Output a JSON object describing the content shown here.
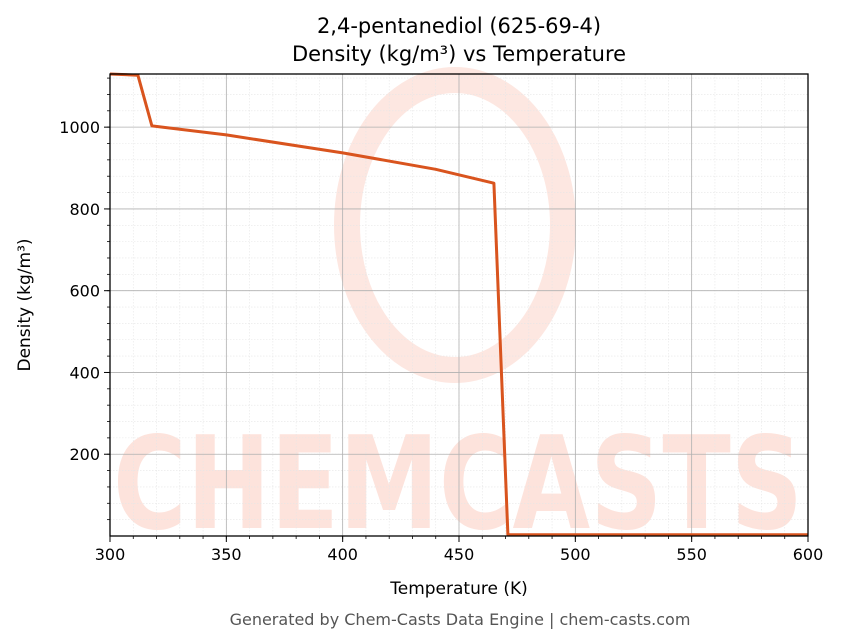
{
  "chart_data": {
    "type": "line",
    "title_line1": "2,4-pentanediol (625-69-4)",
    "title_line2": "Density (kg/m³) vs Temperature",
    "xlabel": "Temperature (K)",
    "ylabel": "Density (kg/m³)",
    "xlim": [
      300,
      600
    ],
    "ylim": [
      0,
      1130
    ],
    "x_ticks": [
      300,
      350,
      400,
      450,
      500,
      550,
      600
    ],
    "y_ticks": [
      200,
      400,
      600,
      800,
      1000
    ],
    "grid": true,
    "line_color": "#d9541e",
    "series": [
      {
        "x": [
          300,
          312,
          318,
          350,
          400,
          440,
          465,
          471,
          500,
          550,
          600
        ],
        "y": [
          1130,
          1127,
          1003,
          981,
          937,
          897,
          863,
          3,
          3,
          3,
          3
        ]
      }
    ]
  },
  "watermark": {
    "text": "CHEMCASTS",
    "color": "#fde3dc"
  },
  "footer": "Generated by Chem-Casts Data Engine | chem-casts.com"
}
